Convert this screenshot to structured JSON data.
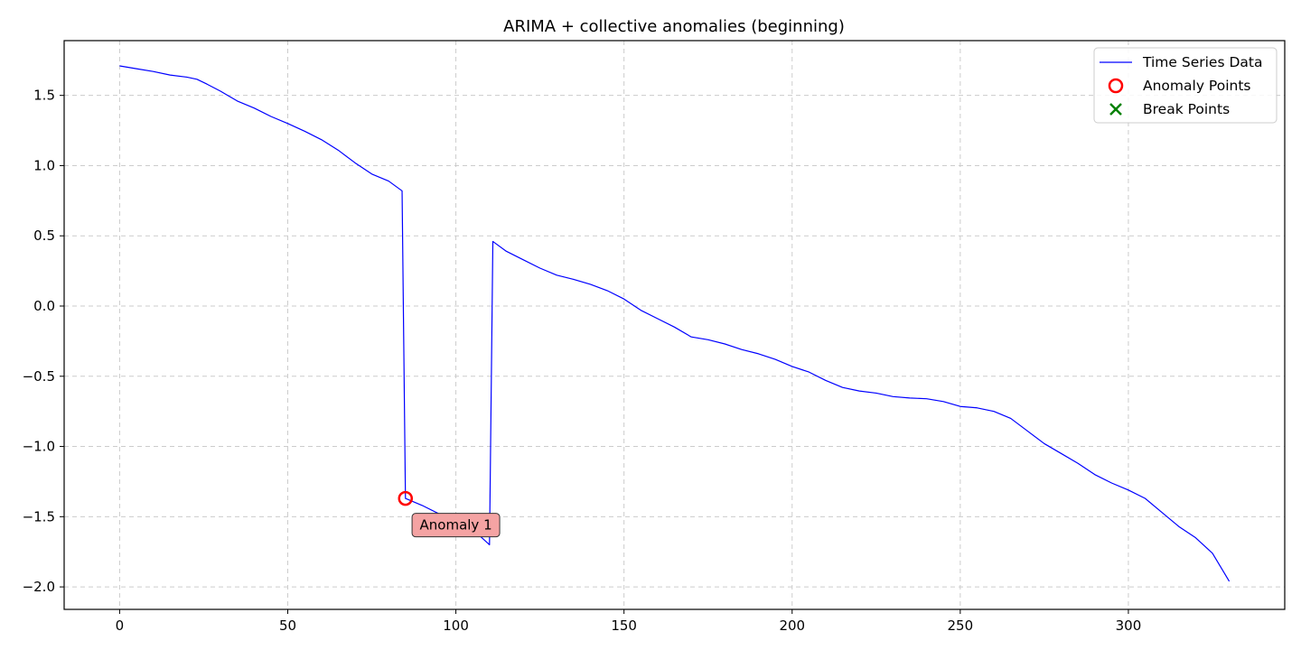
{
  "chart_data": {
    "type": "line",
    "title": "ARIMA + collective anomalies (beginning)",
    "xlabel": "",
    "ylabel": "",
    "xlim": [
      -16.5,
      346.5
    ],
    "ylim": [
      -2.16,
      1.89
    ],
    "x_ticks": [
      0,
      50,
      100,
      150,
      200,
      250,
      300
    ],
    "y_ticks": [
      1.5,
      1.0,
      0.5,
      0.0,
      -0.5,
      -1.0,
      -1.5,
      -2.0
    ],
    "y_tick_labels": [
      "1.5",
      "1.0",
      "0.5",
      "0.0",
      "−0.5",
      "−1.0",
      "−1.5",
      "−2.0"
    ],
    "grid": true,
    "legend_position": "top-right",
    "legend": {
      "line": "Time Series Data",
      "anomaly": "Anomaly Points",
      "break": "Break Points"
    },
    "colors": {
      "line": "#0000ff",
      "anomaly": "#ff0000",
      "break": "#008000",
      "annotation_fill": "#f4a3a3",
      "grid": "#cccccc"
    },
    "series": [
      {
        "name": "Time Series Data",
        "points": [
          [
            0,
            1.71
          ],
          [
            5,
            1.69
          ],
          [
            10,
            1.67
          ],
          [
            15,
            1.645
          ],
          [
            20,
            1.63
          ],
          [
            23,
            1.615
          ],
          [
            26,
            1.58
          ],
          [
            30,
            1.53
          ],
          [
            35,
            1.46
          ],
          [
            40,
            1.41
          ],
          [
            45,
            1.35
          ],
          [
            50,
            1.3
          ],
          [
            55,
            1.245
          ],
          [
            60,
            1.185
          ],
          [
            65,
            1.11
          ],
          [
            70,
            1.02
          ],
          [
            75,
            0.94
          ],
          [
            80,
            0.89
          ],
          [
            84,
            0.82
          ],
          [
            85,
            -1.37
          ],
          [
            90,
            -1.42
          ],
          [
            95,
            -1.48
          ],
          [
            100,
            -1.53
          ],
          [
            105,
            -1.59
          ],
          [
            110,
            -1.7
          ],
          [
            111,
            0.46
          ],
          [
            115,
            0.39
          ],
          [
            120,
            0.33
          ],
          [
            125,
            0.27
          ],
          [
            130,
            0.22
          ],
          [
            135,
            0.19
          ],
          [
            140,
            0.155
          ],
          [
            145,
            0.11
          ],
          [
            150,
            0.05
          ],
          [
            155,
            -0.03
          ],
          [
            160,
            -0.09
          ],
          [
            165,
            -0.15
          ],
          [
            170,
            -0.22
          ],
          [
            175,
            -0.24
          ],
          [
            180,
            -0.27
          ],
          [
            185,
            -0.31
          ],
          [
            190,
            -0.34
          ],
          [
            195,
            -0.38
          ],
          [
            200,
            -0.43
          ],
          [
            205,
            -0.47
          ],
          [
            210,
            -0.53
          ],
          [
            215,
            -0.58
          ],
          [
            220,
            -0.605
          ],
          [
            225,
            -0.62
          ],
          [
            230,
            -0.645
          ],
          [
            235,
            -0.655
          ],
          [
            240,
            -0.66
          ],
          [
            245,
            -0.68
          ],
          [
            250,
            -0.715
          ],
          [
            255,
            -0.725
          ],
          [
            260,
            -0.75
          ],
          [
            265,
            -0.8
          ],
          [
            270,
            -0.89
          ],
          [
            275,
            -0.98
          ],
          [
            280,
            -1.05
          ],
          [
            285,
            -1.12
          ],
          [
            290,
            -1.2
          ],
          [
            295,
            -1.26
          ],
          [
            300,
            -1.31
          ],
          [
            305,
            -1.37
          ],
          [
            310,
            -1.47
          ],
          [
            315,
            -1.57
          ],
          [
            320,
            -1.65
          ],
          [
            325,
            -1.76
          ],
          [
            330,
            -1.96
          ]
        ]
      }
    ],
    "anomaly_points": [
      [
        85,
        -1.37
      ]
    ],
    "break_points": [],
    "annotations": [
      {
        "text": "Anomaly 1",
        "x": 85,
        "y": -1.37,
        "label_x": 100,
        "label_y": -1.56
      }
    ]
  }
}
